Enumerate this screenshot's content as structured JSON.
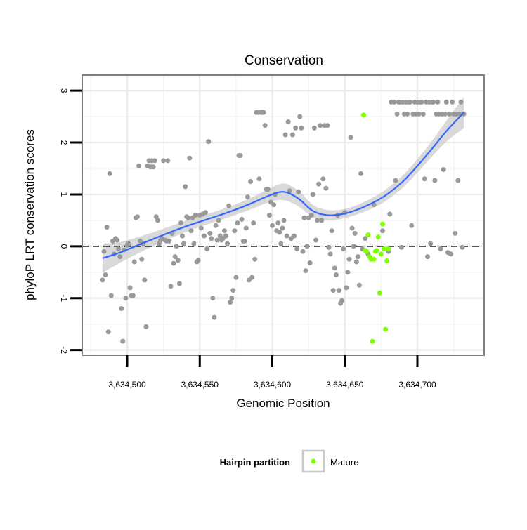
{
  "chart_data": {
    "type": "scatter",
    "title": "Conservation",
    "xlabel": "Genomic Position",
    "ylabel": "phyloP LRT conservation scores",
    "xlim": [
      3634469,
      3634746
    ],
    "ylim": [
      -2.1,
      3.3
    ],
    "x_ticks": [
      3634500,
      3634550,
      3634600,
      3634650,
      3634700
    ],
    "x_tick_labels": [
      "3,634,500",
      "3,634,550",
      "3,634,600",
      "3,634,650",
      "3,634,700"
    ],
    "y_ticks": [
      -2,
      -1,
      0,
      1,
      2,
      3
    ],
    "y_tick_labels": [
      "-2",
      "-1",
      "0",
      "1",
      "2",
      "3"
    ],
    "grid": true,
    "reference_line": {
      "y": 0,
      "style": "dashed"
    },
    "legend": {
      "title": "Hairpin partition",
      "position": "bottom",
      "entries": [
        {
          "label": "Mature",
          "color": "#7fff00"
        }
      ]
    },
    "colors": {
      "points": "#999999",
      "mature": "#7fff00",
      "smooth": "#3366ff",
      "band": "#cccccc"
    },
    "series": [
      {
        "role": "points",
        "points": [
          [
            3634483,
            -0.65
          ],
          [
            3634484,
            -0.1
          ],
          [
            3634485,
            -0.55
          ],
          [
            3634486,
            0.37
          ],
          [
            3634487,
            -1.65
          ],
          [
            3634488,
            1.4
          ],
          [
            3634489,
            -0.95
          ],
          [
            3634490,
            0.1
          ],
          [
            3634491,
            -0.15
          ],
          [
            3634492,
            0.15
          ],
          [
            3634493,
            0.12
          ],
          [
            3634494,
            -0.05
          ],
          [
            3634495,
            -0.2
          ],
          [
            3634496,
            -1.2
          ],
          [
            3634497,
            -1.83
          ],
          [
            3634498,
            -0.07
          ],
          [
            3634499,
            -1.0
          ],
          [
            3634500,
            0.02
          ],
          [
            3634501,
            0.05
          ],
          [
            3634502,
            -0.8
          ],
          [
            3634503,
            -0.95
          ],
          [
            3634504,
            -0.95
          ],
          [
            3634505,
            -0.3
          ],
          [
            3634506,
            0.55
          ],
          [
            3634507,
            0.57
          ],
          [
            3634508,
            1.55
          ],
          [
            3634509,
            0.1
          ],
          [
            3634510,
            -0.25
          ],
          [
            3634511,
            0.05
          ],
          [
            3634512,
            -0.65
          ],
          [
            3634513,
            -1.55
          ],
          [
            3634514,
            1.55
          ],
          [
            3634515,
            1.65
          ],
          [
            3634516,
            1.53
          ],
          [
            3634517,
            1.65
          ],
          [
            3634518,
            1.53
          ],
          [
            3634519,
            1.65
          ],
          [
            3634520,
            0.57
          ],
          [
            3634521,
            0.5
          ],
          [
            3634522,
            0.05
          ],
          [
            3634523,
            0.12
          ],
          [
            3634524,
            0.15
          ],
          [
            3634525,
            1.65
          ],
          [
            3634526,
            0.12
          ],
          [
            3634527,
            0.1
          ],
          [
            3634528,
            1.65
          ],
          [
            3634529,
            0.1
          ],
          [
            3634530,
            -0.77
          ],
          [
            3634531,
            0.25
          ],
          [
            3634532,
            -0.33
          ],
          [
            3634533,
            -0.2
          ],
          [
            3634534,
            0.0
          ],
          [
            3634535,
            -0.27
          ],
          [
            3634536,
            -0.72
          ],
          [
            3634537,
            0.45
          ],
          [
            3634538,
            0.2
          ],
          [
            3634539,
            0.05
          ],
          [
            3634540,
            1.15
          ],
          [
            3634541,
            0.57
          ],
          [
            3634542,
            0.55
          ],
          [
            3634543,
            1.7
          ],
          [
            3634544,
            0.3
          ],
          [
            3634545,
            0.55
          ],
          [
            3634546,
            0.05
          ],
          [
            3634547,
            0.6
          ],
          [
            3634548,
            -0.3
          ],
          [
            3634549,
            -0.27
          ],
          [
            3634550,
            0.6
          ],
          [
            3634551,
            0.35
          ],
          [
            3634552,
            0.62
          ],
          [
            3634553,
            0.2
          ],
          [
            3634554,
            0.65
          ],
          [
            3634555,
            -0.05
          ],
          [
            3634556,
            2.02
          ],
          [
            3634557,
            0.25
          ],
          [
            3634558,
            0.15
          ],
          [
            3634559,
            -1.0
          ],
          [
            3634560,
            -1.37
          ],
          [
            3634561,
            0.4
          ],
          [
            3634562,
            0.12
          ],
          [
            3634563,
            0.5
          ],
          [
            3634564,
            0.2
          ],
          [
            3634565,
            0.12
          ],
          [
            3634566,
            0.15
          ],
          [
            3634567,
            0.3
          ],
          [
            3634568,
            0.2
          ],
          [
            3634569,
            0.05
          ],
          [
            3634570,
            0.78
          ],
          [
            3634571,
            -1.08
          ],
          [
            3634572,
            -1.0
          ],
          [
            3634573,
            -0.85
          ],
          [
            3634574,
            0.3
          ],
          [
            3634575,
            -0.6
          ],
          [
            3634576,
            0.45
          ],
          [
            3634577,
            1.75
          ],
          [
            3634578,
            1.75
          ],
          [
            3634579,
            0.52
          ],
          [
            3634580,
            0.1
          ],
          [
            3634581,
            0.1
          ],
          [
            3634582,
            0.35
          ],
          [
            3634583,
            0.95
          ],
          [
            3634584,
            -0.65
          ],
          [
            3634585,
            1.25
          ],
          [
            3634586,
            -0.6
          ],
          [
            3634587,
            0.45
          ],
          [
            3634588,
            -0.25
          ],
          [
            3634589,
            2.58
          ],
          [
            3634590,
            2.58
          ],
          [
            3634591,
            1.3
          ],
          [
            3634592,
            2.58
          ],
          [
            3634593,
            2.58
          ],
          [
            3634594,
            2.58
          ],
          [
            3634595,
            2.33
          ],
          [
            3634596,
            1.1
          ],
          [
            3634597,
            1.1
          ],
          [
            3634598,
            0.6
          ],
          [
            3634599,
            0.85
          ],
          [
            3634600,
            0.4
          ],
          [
            3634601,
            0.8
          ],
          [
            3634602,
            1.0
          ],
          [
            3634603,
            0.3
          ],
          [
            3634604,
            0.45
          ],
          [
            3634605,
            0.27
          ],
          [
            3634606,
            0.05
          ],
          [
            3634607,
            0.35
          ],
          [
            3634608,
            0.5
          ],
          [
            3634609,
            2.15
          ],
          [
            3634610,
            0.2
          ],
          [
            3634611,
            2.4
          ],
          [
            3634612,
            1.07
          ],
          [
            3634613,
            0.15
          ],
          [
            3634614,
            2.15
          ],
          [
            3634615,
            0.2
          ],
          [
            3634616,
            2.28
          ],
          [
            3634617,
            -0.05
          ],
          [
            3634618,
            1.05
          ],
          [
            3634619,
            2.5
          ],
          [
            3634620,
            2.28
          ],
          [
            3634621,
            -0.1
          ],
          [
            3634622,
            0.55
          ],
          [
            3634623,
            -0.47
          ],
          [
            3634624,
            0.0
          ],
          [
            3634625,
            0.55
          ],
          [
            3634626,
            -0.32
          ],
          [
            3634627,
            0.6
          ],
          [
            3634628,
            1.0
          ],
          [
            3634629,
            2.28
          ],
          [
            3634630,
            0.12
          ],
          [
            3634631,
            0.5
          ],
          [
            3634632,
            1.2
          ],
          [
            3634633,
            2.33
          ],
          [
            3634634,
            0.5
          ],
          [
            3634635,
            1.3
          ],
          [
            3634636,
            2.33
          ],
          [
            3634637,
            1.12
          ],
          [
            3634638,
            2.33
          ],
          [
            3634639,
            -0.02
          ],
          [
            3634640,
            -0.15
          ],
          [
            3634641,
            0.3
          ],
          [
            3634642,
            -0.85
          ],
          [
            3634643,
            -0.42
          ],
          [
            3634644,
            -0.55
          ],
          [
            3634645,
            0.6
          ],
          [
            3634646,
            -0.85
          ],
          [
            3634647,
            -1.1
          ],
          [
            3634648,
            -1.05
          ],
          [
            3634649,
            -0.05
          ],
          [
            3634650,
            0.65
          ],
          [
            3634651,
            -0.8
          ],
          [
            3634652,
            -0.5
          ],
          [
            3634653,
            -0.25
          ],
          [
            3634654,
            2.1
          ],
          [
            3634655,
            0.35
          ],
          [
            3634656,
            0.0
          ],
          [
            3634657,
            0.25
          ],
          [
            3634658,
            -0.3
          ],
          [
            3634659,
            -0.2
          ],
          [
            3634660,
            -0.75
          ],
          [
            3634661,
            1.4
          ],
          [
            3634662,
            -0.05
          ],
          [
            3634664,
            0.15
          ],
          [
            3634666,
            -0.15
          ],
          [
            3634670,
            0.8
          ],
          [
            3634676,
            0.3
          ],
          [
            3634680,
            -0.1
          ],
          [
            3634681,
            0.62
          ],
          [
            3634682,
            2.78
          ],
          [
            3634684,
            2.78
          ],
          [
            3634685,
            1.27
          ],
          [
            3634686,
            2.55
          ],
          [
            3634687,
            2.78
          ],
          [
            3634688,
            2.78
          ],
          [
            3634689,
            -0.02
          ],
          [
            3634690,
            2.78
          ],
          [
            3634691,
            2.55
          ],
          [
            3634692,
            2.78
          ],
          [
            3634693,
            2.55
          ],
          [
            3634694,
            2.78
          ],
          [
            3634695,
            2.78
          ],
          [
            3634696,
            0.4
          ],
          [
            3634697,
            2.55
          ],
          [
            3634698,
            2.78
          ],
          [
            3634699,
            2.55
          ],
          [
            3634700,
            2.78
          ],
          [
            3634701,
            2.55
          ],
          [
            3634702,
            2.78
          ],
          [
            3634703,
            2.78
          ],
          [
            3634704,
            2.55
          ],
          [
            3634705,
            1.3
          ],
          [
            3634706,
            2.78
          ],
          [
            3634707,
            -0.2
          ],
          [
            3634708,
            2.78
          ],
          [
            3634709,
            0.05
          ],
          [
            3634710,
            2.78
          ],
          [
            3634711,
            2.78
          ],
          [
            3634712,
            1.27
          ],
          [
            3634713,
            2.55
          ],
          [
            3634714,
            2.78
          ],
          [
            3634715,
            2.55
          ],
          [
            3634716,
            -0.05
          ],
          [
            3634717,
            2.55
          ],
          [
            3634718,
            1.48
          ],
          [
            3634719,
            2.55
          ],
          [
            3634720,
            2.78
          ],
          [
            3634721,
            -0.12
          ],
          [
            3634722,
            2.55
          ],
          [
            3634723,
            -0.15
          ],
          [
            3634724,
            2.78
          ],
          [
            3634725,
            2.55
          ],
          [
            3634726,
            0.25
          ],
          [
            3634727,
            2.55
          ],
          [
            3634728,
            1.27
          ],
          [
            3634729,
            2.55
          ],
          [
            3634730,
            2.78
          ],
          [
            3634731,
            -0.02
          ],
          [
            3634732,
            2.55
          ]
        ]
      },
      {
        "role": "mature",
        "name": "Mature",
        "points": [
          [
            3634663,
            2.53
          ],
          [
            3634664,
            -0.08
          ],
          [
            3634665,
            -0.1
          ],
          [
            3634666,
            0.22
          ],
          [
            3634667,
            -0.2
          ],
          [
            3634668,
            -0.25
          ],
          [
            3634669,
            -1.83
          ],
          [
            3634670,
            -0.25
          ],
          [
            3634671,
            -0.1
          ],
          [
            3634672,
            -0.08
          ],
          [
            3634673,
            0.18
          ],
          [
            3634674,
            -0.9
          ],
          [
            3634675,
            -0.15
          ],
          [
            3634676,
            0.43
          ],
          [
            3634677,
            -0.05
          ],
          [
            3634678,
            -1.6
          ],
          [
            3634679,
            -0.28
          ],
          [
            3634680,
            -0.05
          ]
        ]
      },
      {
        "role": "smooth",
        "points": [
          [
            3634483,
            -0.23
          ],
          [
            3634495,
            -0.12
          ],
          [
            3634510,
            0.05
          ],
          [
            3634525,
            0.22
          ],
          [
            3634540,
            0.38
          ],
          [
            3634555,
            0.52
          ],
          [
            3634570,
            0.66
          ],
          [
            3634585,
            0.82
          ],
          [
            3634598,
            0.98
          ],
          [
            3634608,
            1.05
          ],
          [
            3634618,
            0.92
          ],
          [
            3634628,
            0.68
          ],
          [
            3634638,
            0.6
          ],
          [
            3634648,
            0.62
          ],
          [
            3634658,
            0.7
          ],
          [
            3634668,
            0.82
          ],
          [
            3634678,
            0.98
          ],
          [
            3634690,
            1.25
          ],
          [
            3634700,
            1.55
          ],
          [
            3634710,
            1.88
          ],
          [
            3634720,
            2.22
          ],
          [
            3634732,
            2.58
          ]
        ],
        "band_halfwidth": [
          0.28,
          0.2,
          0.15,
          0.12,
          0.11,
          0.1,
          0.1,
          0.11,
          0.13,
          0.16,
          0.15,
          0.12,
          0.1,
          0.09,
          0.09,
          0.1,
          0.11,
          0.12,
          0.13,
          0.15,
          0.2,
          0.3
        ]
      }
    ]
  }
}
